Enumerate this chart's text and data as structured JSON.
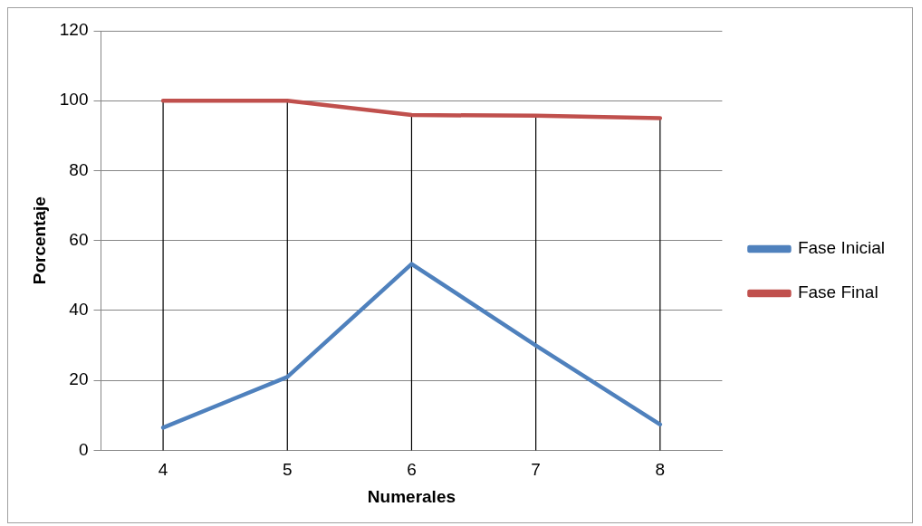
{
  "chart_data": {
    "type": "line",
    "xlabel": "Numerales",
    "ylabel": "Porcentaje",
    "categories": [
      "4",
      "5",
      "6",
      "7",
      "8"
    ],
    "series": [
      {
        "name": "Fase Inicial",
        "color": "#4f81bd",
        "values": [
          6.5,
          21,
          53.3,
          30,
          7.4
        ]
      },
      {
        "name": "Fase Final",
        "color": "#c0504d",
        "values": [
          100,
          100,
          95.9,
          95.7,
          95
        ]
      }
    ],
    "ylim": [
      0,
      120
    ],
    "yticks": [
      0,
      20,
      40,
      60,
      80,
      100,
      120
    ],
    "grid": true,
    "legend": "right",
    "marker": "none",
    "line_style": "solid"
  }
}
